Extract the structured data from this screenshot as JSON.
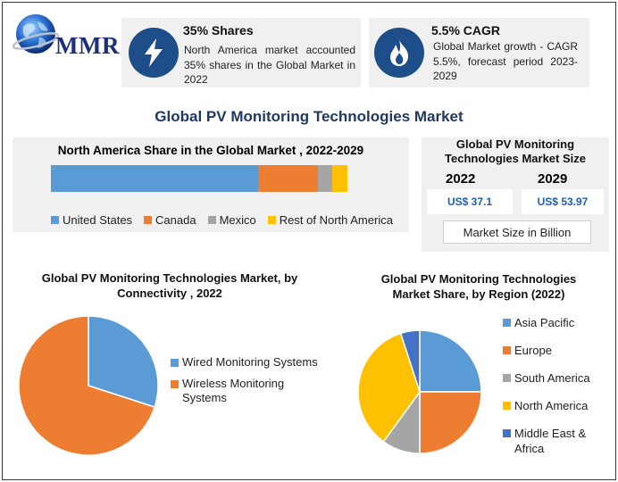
{
  "brand": {
    "name": "MMR"
  },
  "stats": [
    {
      "title": "35% Shares",
      "icon": "lightning-icon",
      "desc": "North America market accounted 35% shares in the Global Market in 2022"
    },
    {
      "title": "5.5% CAGR",
      "icon": "flame-icon",
      "desc": "Global Market growth - CAGR 5.5%, forecast period 2023-2029"
    }
  ],
  "main_title": "Global PV Monitoring Technologies Market",
  "colors": {
    "blue": "#5b9bd5",
    "orange": "#ed7d31",
    "gray": "#a5a5a5",
    "yellow": "#ffc000",
    "navy": "#4472c4",
    "icon_bg": "#1d4e89"
  },
  "market_size": {
    "title": "Global PV Monitoring Technologies Market Size",
    "year1": "2022",
    "value1": "US$ 37.1",
    "year2": "2029",
    "value2": "US$ 53.97",
    "unit": "Market Size in Billion"
  },
  "chart_data": [
    {
      "type": "bar",
      "orientation": "horizontal-stacked",
      "title": "North America Share in the Global Market , 2022-2029",
      "categories": [
        ""
      ],
      "series": [
        {
          "name": "United States",
          "values": [
            70
          ],
          "color": "#5b9bd5"
        },
        {
          "name": "Canada",
          "values": [
            20
          ],
          "color": "#ed7d31"
        },
        {
          "name": "Mexico",
          "values": [
            5
          ],
          "color": "#a5a5a5"
        },
        {
          "name": "Rest of North America",
          "values": [
            5
          ],
          "color": "#ffc000"
        }
      ],
      "legend": "bottom"
    },
    {
      "type": "pie",
      "title": "Global PV Monitoring Technologies Market, by Connectivity , 2022",
      "slices": [
        {
          "label": "Wired Monitoring Systems",
          "value": 30,
          "color": "#5b9bd5"
        },
        {
          "label": "Wireless Monitoring Systems",
          "value": 70,
          "color": "#ed7d31"
        }
      ],
      "legend": "right"
    },
    {
      "type": "pie",
      "title": "Global PV Monitoring Technologies Market Share, by Region (2022)",
      "slices": [
        {
          "label": "Asia Pacific",
          "value": 25,
          "color": "#5b9bd5"
        },
        {
          "label": "Europe",
          "value": 25,
          "color": "#ed7d31"
        },
        {
          "label": "South America",
          "value": 10,
          "color": "#a5a5a5"
        },
        {
          "label": "North America",
          "value": 35,
          "color": "#ffc000"
        },
        {
          "label": "Middle East & Africa",
          "value": 5,
          "color": "#4472c4"
        }
      ],
      "legend": "right"
    }
  ]
}
